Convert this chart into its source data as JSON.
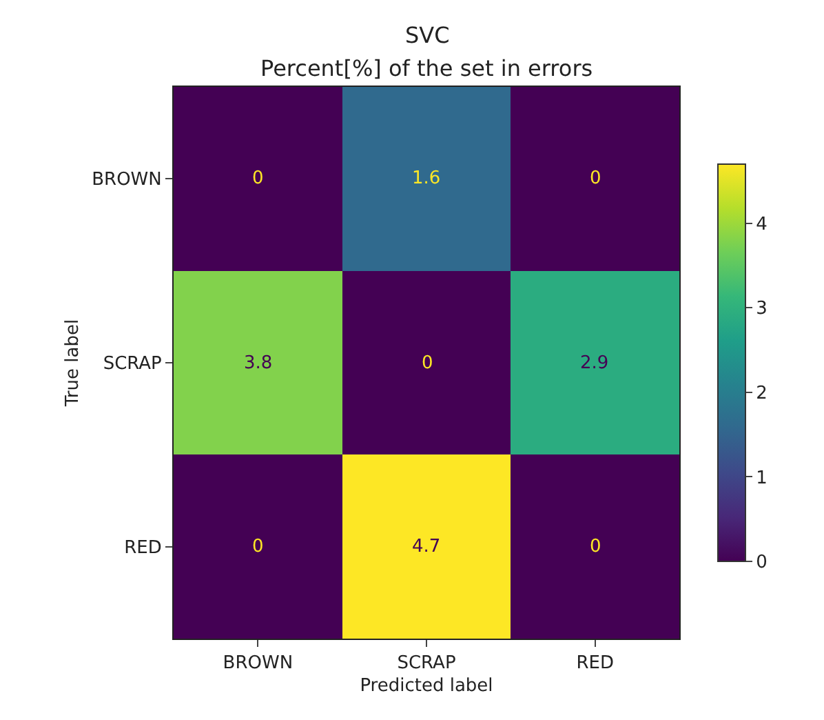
{
  "chart_data": {
    "type": "heatmap",
    "title": "SVC",
    "subtitle": "Percent[%] of the set in errors",
    "xlabel": "Predicted label",
    "ylabel": "True label",
    "categories": [
      "BROWN",
      "SCRAP",
      "RED"
    ],
    "y_categories": [
      "BROWN",
      "SCRAP",
      "RED"
    ],
    "cells": [
      [
        0,
        1.6,
        0
      ],
      [
        3.8,
        0,
        2.9
      ],
      [
        0,
        4.7,
        0
      ]
    ],
    "data_labels": true,
    "clim": [
      0,
      4.7
    ],
    "cticks": [
      0,
      1,
      2,
      3,
      4
    ]
  }
}
